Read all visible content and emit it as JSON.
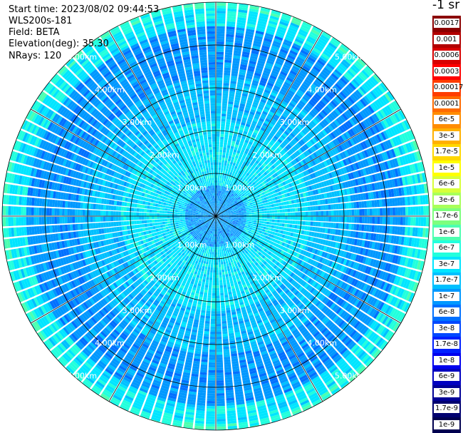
{
  "header": {
    "start_time": "Start time: 2023/08/02 09:44:53",
    "instrument": "WLS200s-181",
    "field": "Field: BETA",
    "elevation": "Elevation(deg): 35.30",
    "nrays": "NRays: 120"
  },
  "legend": {
    "title": "-1 sr",
    "entries": [
      {
        "label": "0.0017",
        "color": "#8b0000"
      },
      {
        "label": "0.001",
        "color": "#b20000"
      },
      {
        "label": "0.0006",
        "color": "#d80000"
      },
      {
        "label": "0.0003",
        "color": "#ff0000"
      },
      {
        "label": "0.00017",
        "color": "#ff3d00"
      },
      {
        "label": "0.0001",
        "color": "#ff6a00"
      },
      {
        "label": "6e-5",
        "color": "#ff8c00"
      },
      {
        "label": "3e-5",
        "color": "#ffb000"
      },
      {
        "label": "1.7e-5",
        "color": "#ffd700"
      },
      {
        "label": "1e-5",
        "color": "#ffff00"
      },
      {
        "label": "6e-6",
        "color": "#d8ff3a"
      },
      {
        "label": "3e-6",
        "color": "#a8ff5a"
      },
      {
        "label": "1.7e-6",
        "color": "#7dff7d"
      },
      {
        "label": "1e-6",
        "color": "#4dffb0"
      },
      {
        "label": "6e-7",
        "color": "#22ffdd"
      },
      {
        "label": "3e-7",
        "color": "#00e5ff"
      },
      {
        "label": "1.7e-7",
        "color": "#00c0ff"
      },
      {
        "label": "1e-7",
        "color": "#0098ff"
      },
      {
        "label": "6e-8",
        "color": "#0070ff"
      },
      {
        "label": "3e-8",
        "color": "#0048ff"
      },
      {
        "label": "1.7e-8",
        "color": "#0020ff"
      },
      {
        "label": "1e-8",
        "color": "#0000ee"
      },
      {
        "label": "6e-9",
        "color": "#0000c0"
      },
      {
        "label": "3e-9",
        "color": "#000096"
      },
      {
        "label": "1.7e-9",
        "color": "#000070"
      },
      {
        "label": "1e-9",
        "color": "#000050"
      }
    ]
  },
  "chart_data": {
    "type": "heatmap",
    "projection": "polar (PPI)",
    "field": "BETA",
    "units": "-1 sr",
    "elevation_deg": 35.3,
    "n_rays": 120,
    "range_rings_km": [
      1,
      2,
      3,
      4,
      5
    ],
    "ring_labels": [
      "1.00km",
      "2.00km",
      "3.00km",
      "4.00km",
      "5.00km"
    ],
    "spoke_angles_deg": [
      0,
      30,
      60,
      90,
      120,
      150,
      180,
      210,
      240,
      270,
      300,
      330
    ],
    "max_range_km": 5.0,
    "range_bands": [
      {
        "from_km": 0.0,
        "to_km": 0.7,
        "dominant": "1e-7",
        "mix": [
          "1.7e-7",
          "6e-8"
        ]
      },
      {
        "from_km": 0.7,
        "to_km": 2.2,
        "dominant": "3e-7",
        "mix": [
          "1.7e-7",
          "6e-7"
        ]
      },
      {
        "from_km": 2.2,
        "to_km": 3.2,
        "dominant": "1.7e-7",
        "mix": [
          "1e-7",
          "3e-7"
        ]
      },
      {
        "from_km": 3.2,
        "to_km": 4.4,
        "dominant": "1e-7",
        "mix": [
          "6e-8",
          "1.7e-7"
        ]
      },
      {
        "from_km": 4.4,
        "to_km": 4.8,
        "dominant": "3e-7",
        "mix": [
          "6e-7",
          "1.7e-7"
        ]
      },
      {
        "from_km": 4.8,
        "to_km": 5.0,
        "dominant": "6e-7",
        "mix": [
          "1e-6",
          "3e-7"
        ]
      }
    ]
  }
}
